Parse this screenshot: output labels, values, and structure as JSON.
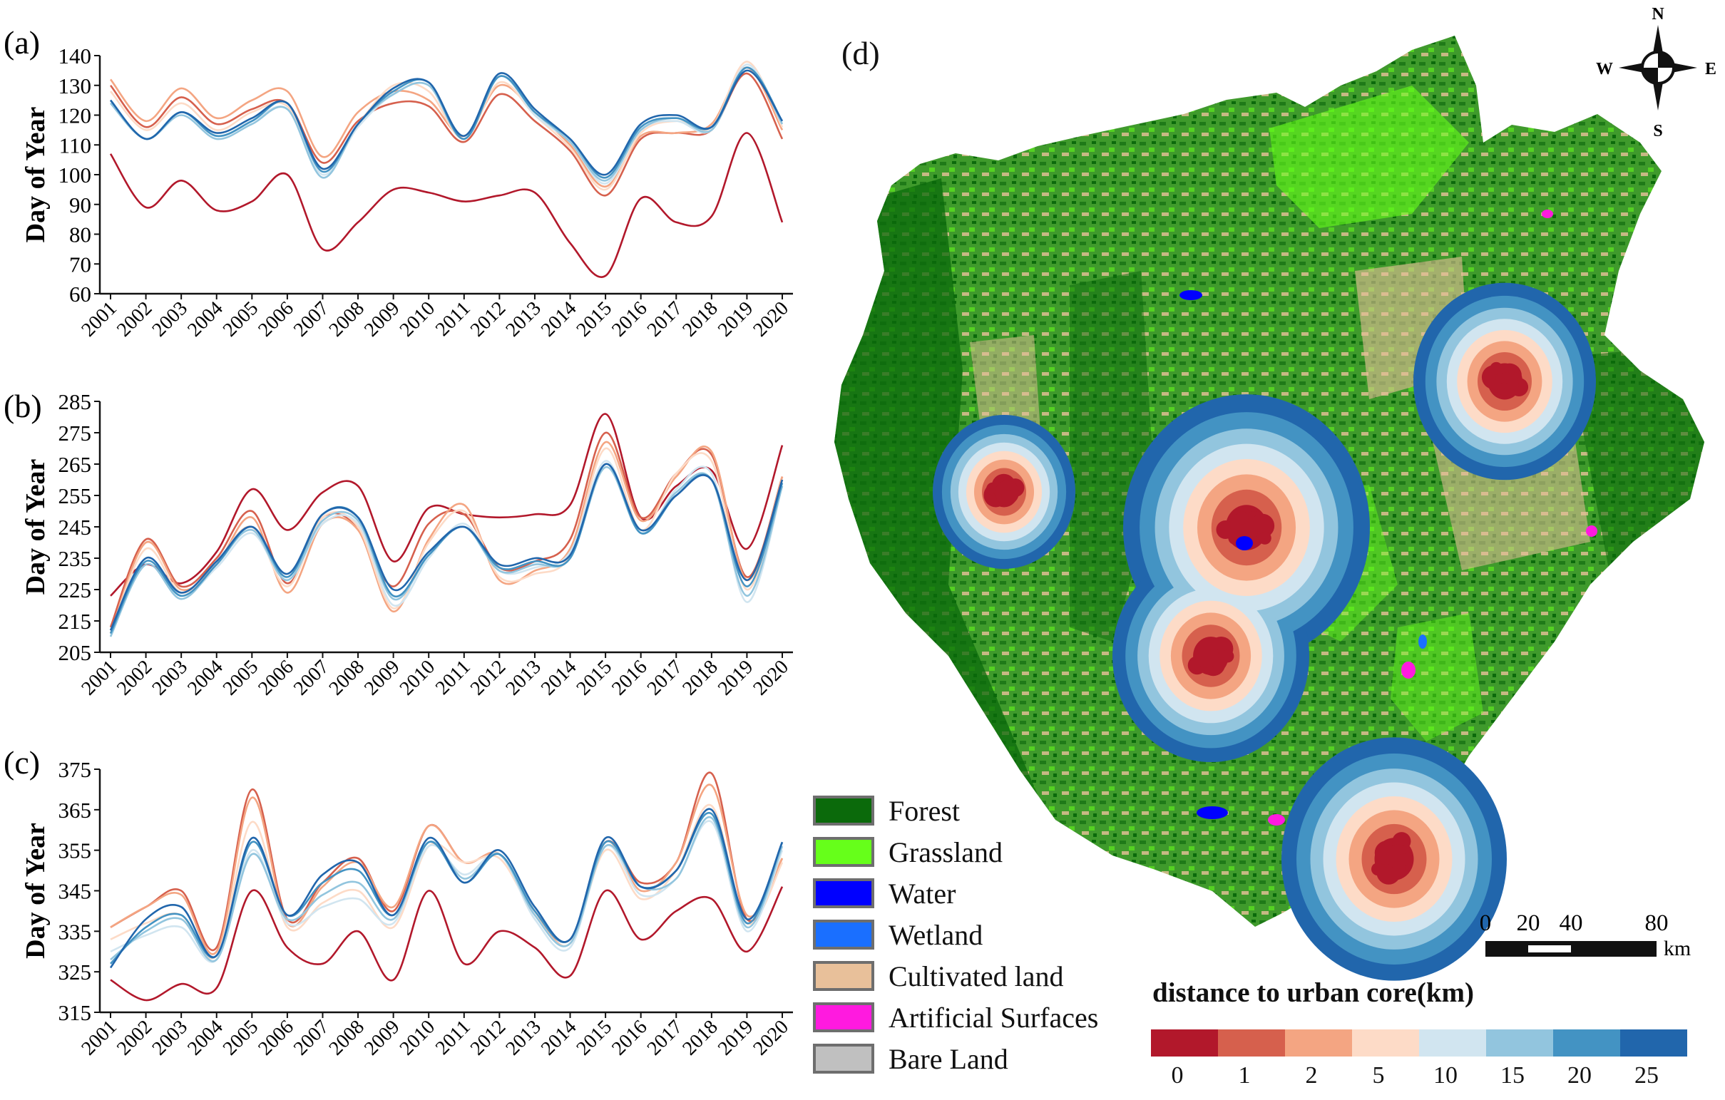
{
  "chart_data": [
    {
      "panel": "(a)",
      "type": "line",
      "ylabel": "Day of Year",
      "ylim": [
        60,
        140
      ],
      "yticks": [
        60,
        70,
        80,
        90,
        100,
        110,
        120,
        130,
        140
      ],
      "x": [
        "2001",
        "2002",
        "2003",
        "2004",
        "2005",
        "2006",
        "2007",
        "2008",
        "2009",
        "2010",
        "2011",
        "2012",
        "2013",
        "2014",
        "2015",
        "2016",
        "2017",
        "2018",
        "2019",
        "2020"
      ],
      "series": [
        {
          "name": "0",
          "color": "#b2182b",
          "values": [
            107,
            89,
            98,
            88,
            91,
            100,
            75,
            84,
            95,
            94,
            91,
            93,
            94,
            77,
            66,
            92,
            84,
            86,
            114,
            84
          ]
        },
        {
          "name": "1",
          "color": "#d6604d",
          "values": [
            130,
            116,
            126,
            117,
            122,
            124,
            104,
            118,
            124,
            123,
            111,
            127,
            118,
            108,
            93,
            112,
            114,
            115,
            134,
            112
          ]
        },
        {
          "name": "2",
          "color": "#f4a582",
          "values": [
            132,
            118,
            129,
            119,
            125,
            128,
            106,
            121,
            128,
            125,
            113,
            130,
            121,
            110,
            96,
            113,
            114,
            117,
            136,
            115
          ]
        },
        {
          "name": "5",
          "color": "#fddbc7",
          "values": [
            128,
            115,
            124,
            115,
            121,
            123,
            102,
            117,
            130,
            128,
            112,
            131,
            120,
            109,
            95,
            114,
            118,
            116,
            138,
            116
          ]
        },
        {
          "name": "10",
          "color": "#d1e5f0",
          "values": [
            124,
            112,
            121,
            113,
            118,
            122,
            100,
            116,
            127,
            130,
            112,
            133,
            120,
            111,
            97,
            115,
            118,
            115,
            137,
            117
          ]
        },
        {
          "name": "15",
          "color": "#92c5de",
          "values": [
            124,
            112,
            120,
            112,
            117,
            122,
            99,
            117,
            127,
            130,
            112,
            133,
            121,
            111,
            98,
            115,
            119,
            115,
            136,
            117
          ]
        },
        {
          "name": "20",
          "color": "#4393c3",
          "values": [
            125,
            112,
            121,
            113,
            118,
            124,
            101,
            117,
            128,
            131,
            112,
            133,
            121,
            112,
            99,
            116,
            119,
            116,
            136,
            118
          ]
        },
        {
          "name": "25",
          "color": "#2166ac",
          "values": [
            125,
            112,
            121,
            114,
            119,
            124,
            102,
            117,
            129,
            131,
            113,
            134,
            122,
            112,
            100,
            117,
            120,
            116,
            135,
            118
          ]
        }
      ]
    },
    {
      "panel": "(b)",
      "type": "line",
      "ylabel": "Day of Year",
      "ylim": [
        205,
        285
      ],
      "yticks": [
        205,
        215,
        225,
        235,
        245,
        255,
        265,
        275,
        285
      ],
      "x": [
        "2001",
        "2002",
        "2003",
        "2004",
        "2005",
        "2006",
        "2007",
        "2008",
        "2009",
        "2010",
        "2011",
        "2012",
        "2013",
        "2014",
        "2015",
        "2016",
        "2017",
        "2018",
        "2019",
        "2020"
      ],
      "series": [
        {
          "name": "0",
          "color": "#b2182b",
          "values": [
            223,
            233,
            227,
            237,
            257,
            244,
            256,
            258,
            234,
            251,
            249,
            248,
            249,
            252,
            281,
            248,
            258,
            263,
            238,
            271
          ]
        },
        {
          "name": "1",
          "color": "#d6604d",
          "values": [
            213,
            241,
            226,
            235,
            250,
            227,
            248,
            245,
            226,
            246,
            249,
            232,
            234,
            241,
            275,
            248,
            262,
            268,
            229,
            261
          ]
        },
        {
          "name": "2",
          "color": "#f4a582",
          "values": [
            211,
            240,
            225,
            233,
            248,
            224,
            246,
            244,
            218,
            241,
            252,
            228,
            231,
            238,
            272,
            247,
            261,
            269,
            228,
            261
          ]
        },
        {
          "name": "5",
          "color": "#fddbc7",
          "values": [
            211,
            238,
            224,
            234,
            245,
            226,
            248,
            245,
            219,
            240,
            250,
            229,
            230,
            236,
            270,
            244,
            262,
            266,
            225,
            260
          ]
        },
        {
          "name": "10",
          "color": "#d1e5f0",
          "values": [
            210,
            235,
            223,
            232,
            243,
            228,
            246,
            246,
            220,
            235,
            246,
            231,
            232,
            237,
            266,
            243,
            257,
            262,
            221,
            258
          ]
        },
        {
          "name": "15",
          "color": "#92c5de",
          "values": [
            210,
            233,
            222,
            233,
            244,
            228,
            247,
            247,
            222,
            236,
            245,
            231,
            233,
            235,
            264,
            243,
            256,
            260,
            223,
            258
          ]
        },
        {
          "name": "20",
          "color": "#4393c3",
          "values": [
            211,
            234,
            223,
            233,
            245,
            229,
            249,
            248,
            223,
            236,
            245,
            232,
            234,
            235,
            265,
            243,
            255,
            260,
            226,
            259
          ]
        },
        {
          "name": "25",
          "color": "#2166ac",
          "values": [
            212,
            235,
            224,
            234,
            245,
            230,
            249,
            248,
            225,
            237,
            245,
            233,
            235,
            236,
            265,
            244,
            255,
            260,
            228,
            260
          ]
        }
      ]
    },
    {
      "panel": "(c)",
      "type": "line",
      "ylabel": "Day of Year",
      "ylim": [
        315,
        375
      ],
      "yticks": [
        315,
        325,
        335,
        345,
        355,
        365,
        375
      ],
      "x": [
        "2001",
        "2002",
        "2003",
        "2004",
        "2005",
        "2006",
        "2007",
        "2008",
        "2009",
        "2010",
        "2011",
        "2012",
        "2013",
        "2014",
        "2015",
        "2016",
        "2017",
        "2018",
        "2019",
        "2020"
      ],
      "series": [
        {
          "name": "0",
          "color": "#b2182b",
          "values": [
            323,
            318,
            322,
            321,
            345,
            331,
            327,
            335,
            323,
            345,
            327,
            335,
            331,
            324,
            345,
            333,
            340,
            343,
            330,
            346
          ]
        },
        {
          "name": "1",
          "color": "#d6604d",
          "values": [
            336,
            341,
            345,
            331,
            370,
            338,
            347,
            353,
            340,
            361,
            352,
            354,
            340,
            333,
            357,
            347,
            352,
            374,
            338,
            353
          ]
        },
        {
          "name": "2",
          "color": "#f4a582",
          "values": [
            336,
            341,
            344,
            330,
            368,
            337,
            346,
            352,
            341,
            361,
            352,
            354,
            340,
            332,
            357,
            345,
            352,
            371,
            339,
            353
          ]
        },
        {
          "name": "5",
          "color": "#fddbc7",
          "values": [
            333,
            337,
            339,
            329,
            362,
            336,
            342,
            345,
            336,
            356,
            352,
            353,
            339,
            332,
            355,
            343,
            350,
            366,
            337,
            352
          ]
        },
        {
          "name": "10",
          "color": "#d1e5f0",
          "values": [
            330,
            334,
            336,
            328,
            355,
            337,
            341,
            343,
            337,
            356,
            349,
            354,
            338,
            331,
            356,
            344,
            348,
            362,
            335,
            355
          ]
        },
        {
          "name": "15",
          "color": "#92c5de",
          "values": [
            328,
            335,
            338,
            328,
            354,
            338,
            344,
            347,
            338,
            357,
            348,
            354,
            339,
            332,
            356,
            346,
            348,
            363,
            336,
            356
          ]
        },
        {
          "name": "20",
          "color": "#4393c3",
          "values": [
            327,
            336,
            339,
            329,
            357,
            339,
            347,
            350,
            339,
            357,
            347,
            354,
            340,
            333,
            357,
            346,
            350,
            364,
            337,
            357
          ]
        },
        {
          "name": "25",
          "color": "#2166ac",
          "values": [
            326,
            338,
            341,
            329,
            358,
            339,
            349,
            352,
            339,
            358,
            347,
            355,
            341,
            333,
            358,
            346,
            350,
            365,
            338,
            357
          ]
        }
      ]
    }
  ],
  "map": {
    "panel_label": "(d)",
    "compass": {
      "n": "N",
      "s": "S",
      "e": "E",
      "w": "W"
    },
    "scale_bar": {
      "ticks": [
        "0",
        "20",
        "40",
        "80"
      ],
      "unit": "km"
    },
    "landcover_legend": [
      {
        "label": "Forest",
        "color": "#0b6a0b"
      },
      {
        "label": "Grassland",
        "color": "#66ff1a"
      },
      {
        "label": "Water",
        "color": "#0000ff"
      },
      {
        "label": "Wetland",
        "color": "#1a6fff"
      },
      {
        "label": "Cultivated land",
        "color": "#e8c09a"
      },
      {
        "label": "Artificial Surfaces",
        "color": "#ff1adf"
      },
      {
        "label": "Bare Land",
        "color": "#c0c0c0"
      }
    ],
    "distance_legend": {
      "title": "distance to urban core(km)",
      "classes": [
        "0",
        "1",
        "2",
        "5",
        "10",
        "15",
        "20",
        "25"
      ],
      "colors": [
        "#b2182b",
        "#d6604d",
        "#f4a582",
        "#fddbc7",
        "#d1e5f0",
        "#92c5de",
        "#4393c3",
        "#2166ac"
      ]
    }
  }
}
